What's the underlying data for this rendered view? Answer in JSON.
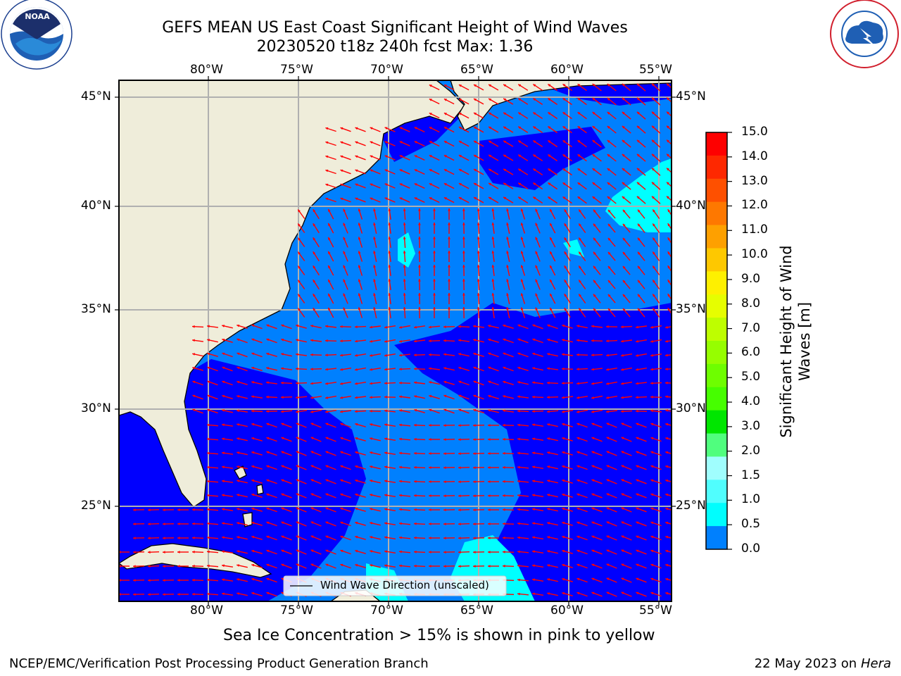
{
  "header": {
    "title_line1": "GEFS MEAN US East Coast Significant Height of Wind Waves",
    "title_line2": "20230520 t18z 240h fcst   Max: 1.36"
  },
  "logos": {
    "left_text": "NOAA",
    "left_ring_text": "NATIONAL OCEANIC AND ATMOSPHERIC ADMINISTRATION · U.S. DEPARTMENT OF COMMERCE",
    "right_ring_text": "NATIONAL WEATHER SERVICE"
  },
  "map": {
    "lon_labels": [
      "80°W",
      "75°W",
      "70°W",
      "65°W",
      "60°W",
      "55°W"
    ],
    "lat_labels": [
      "45°N",
      "40°N",
      "35°N",
      "30°N",
      "25°N"
    ],
    "legend_label": "Wind Wave Direction (unscaled)",
    "colors": {
      "land": "#efedda",
      "water_0": "#0000fe",
      "water_05": "#0080fe",
      "water_10": "#00ffff",
      "arrow": "#ff0000"
    }
  },
  "colorbar": {
    "label_line1": "Significant Height of Wind",
    "label_line2": "Waves [m]",
    "ticks": [
      "15.0",
      "14.0",
      "13.0",
      "12.0",
      "11.0",
      "10.0",
      "9.0",
      "8.0",
      "7.0",
      "6.0",
      "5.0",
      "4.0",
      "3.0",
      "2.0",
      "1.5",
      "1.0",
      "0.5",
      "0.0"
    ],
    "colors": [
      "#fe0000",
      "#fe2800",
      "#fe5000",
      "#fe7800",
      "#fea000",
      "#fec800",
      "#fef000",
      "#e6fe00",
      "#befe00",
      "#96fe00",
      "#6efe00",
      "#46fe00",
      "#00e600",
      "#50fe7e",
      "#a0fefe",
      "#50fefe",
      "#00fefe",
      "#0080fe",
      "#0000fe"
    ]
  },
  "notes": {
    "sea_ice": "Sea Ice Concentration > 15% is shown in pink to yellow"
  },
  "footer": {
    "left": "NCEP/EMC/Verification Post Processing Product Generation Branch",
    "date": "22 May 2023 on",
    "machine": "Hera"
  }
}
